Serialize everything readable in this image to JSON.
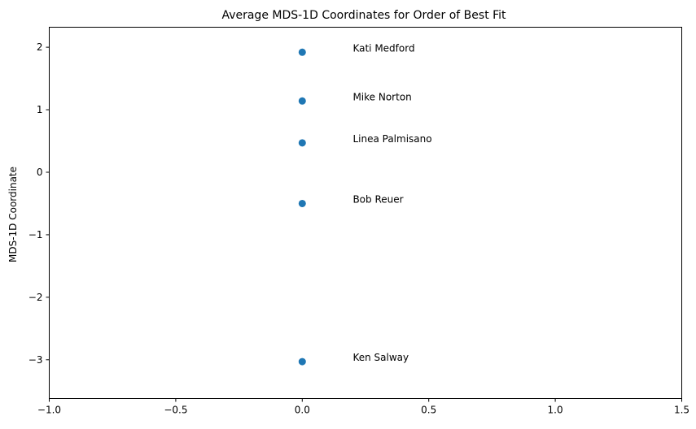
{
  "chart_data": {
    "type": "scatter",
    "title": "Average MDS-1D Coordinates for Order of Best Fit",
    "xlabel": "",
    "ylabel": "MDS-1D Coordinate",
    "xlim": [
      -1.0,
      1.5
    ],
    "ylim": [
      -3.62,
      2.32
    ],
    "xticks": [
      -1.0,
      -0.5,
      0.0,
      0.5,
      1.0,
      1.5
    ],
    "xtick_labels": [
      "−1.0",
      "−0.5",
      "0.0",
      "0.5",
      "1.0",
      "1.5"
    ],
    "yticks": [
      2,
      1,
      0,
      -1,
      -2,
      -3
    ],
    "ytick_labels": [
      "2",
      "1",
      "0",
      "−1",
      "−2",
      "−3"
    ],
    "grid": false,
    "marker_color": "#1f77b4",
    "label_x_offset": 0.2,
    "points": [
      {
        "name": "Kati Medford",
        "x": 0.0,
        "y": 1.92
      },
      {
        "name": "Mike Norton",
        "x": 0.0,
        "y": 1.14
      },
      {
        "name": "Linea Palmisano",
        "x": 0.0,
        "y": 0.47
      },
      {
        "name": "Bob Reuer",
        "x": 0.0,
        "y": -0.5
      },
      {
        "name": "Ken Salway",
        "x": 0.0,
        "y": -3.03
      }
    ]
  }
}
